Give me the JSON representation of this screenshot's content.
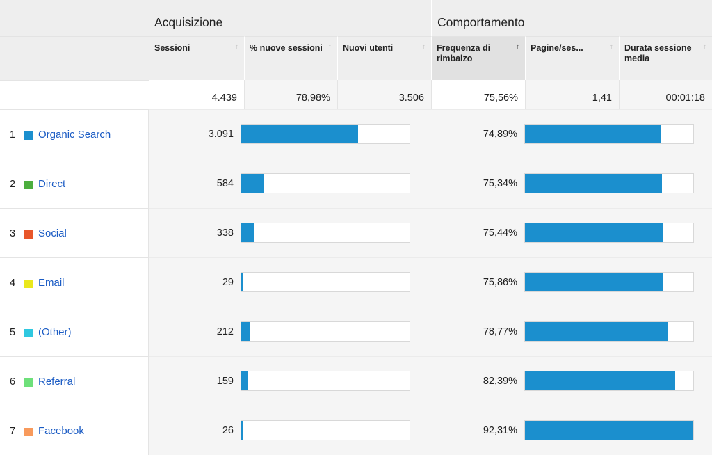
{
  "groups": {
    "acquisition": "Acquisizione",
    "behavior": "Comportamento"
  },
  "columns": {
    "sessions": "Sessioni",
    "pct_new_sessions": "% nuove sessioni",
    "new_users": "Nuovi utenti",
    "bounce_rate": "Frequenza di rimbalzo",
    "pages_per_session": "Pagine/ses...",
    "avg_session_duration": "Durata sessione media"
  },
  "icons": {
    "sort_up": "↑",
    "sort_active": "↑"
  },
  "totals": {
    "sessions": "4.439",
    "pct_new_sessions": "78,98%",
    "new_users": "3.506",
    "bounce_rate": "75,56%",
    "pages_per_session": "1,41",
    "avg_session_duration": "00:01:18"
  },
  "rows": [
    {
      "rank": "1",
      "name": "Organic Search",
      "color": "#1b8fce",
      "sessions": "3.091",
      "sessions_share": 0.696,
      "bounce": "74,89%",
      "bounce_share": 0.811
    },
    {
      "rank": "2",
      "name": "Direct",
      "color": "#4cae3e",
      "sessions": "584",
      "sessions_share": 0.132,
      "bounce": "75,34%",
      "bounce_share": 0.816
    },
    {
      "rank": "3",
      "name": "Social",
      "color": "#e8562a",
      "sessions": "338",
      "sessions_share": 0.076,
      "bounce": "75,44%",
      "bounce_share": 0.817
    },
    {
      "rank": "4",
      "name": "Email",
      "color": "#eae81c",
      "sessions": "29",
      "sessions_share": 0.007,
      "bounce": "75,86%",
      "bounce_share": 0.822
    },
    {
      "rank": "5",
      "name": "(Other)",
      "color": "#2fc8e0",
      "sessions": "212",
      "sessions_share": 0.048,
      "bounce": "78,77%",
      "bounce_share": 0.853
    },
    {
      "rank": "6",
      "name": "Referral",
      "color": "#6ee07a",
      "sessions": "159",
      "sessions_share": 0.036,
      "bounce": "82,39%",
      "bounce_share": 0.893
    },
    {
      "rank": "7",
      "name": "Facebook",
      "color": "#f89a5c",
      "sessions": "26",
      "sessions_share": 0.006,
      "bounce": "92,31%",
      "bounce_share": 1.0
    }
  ]
}
